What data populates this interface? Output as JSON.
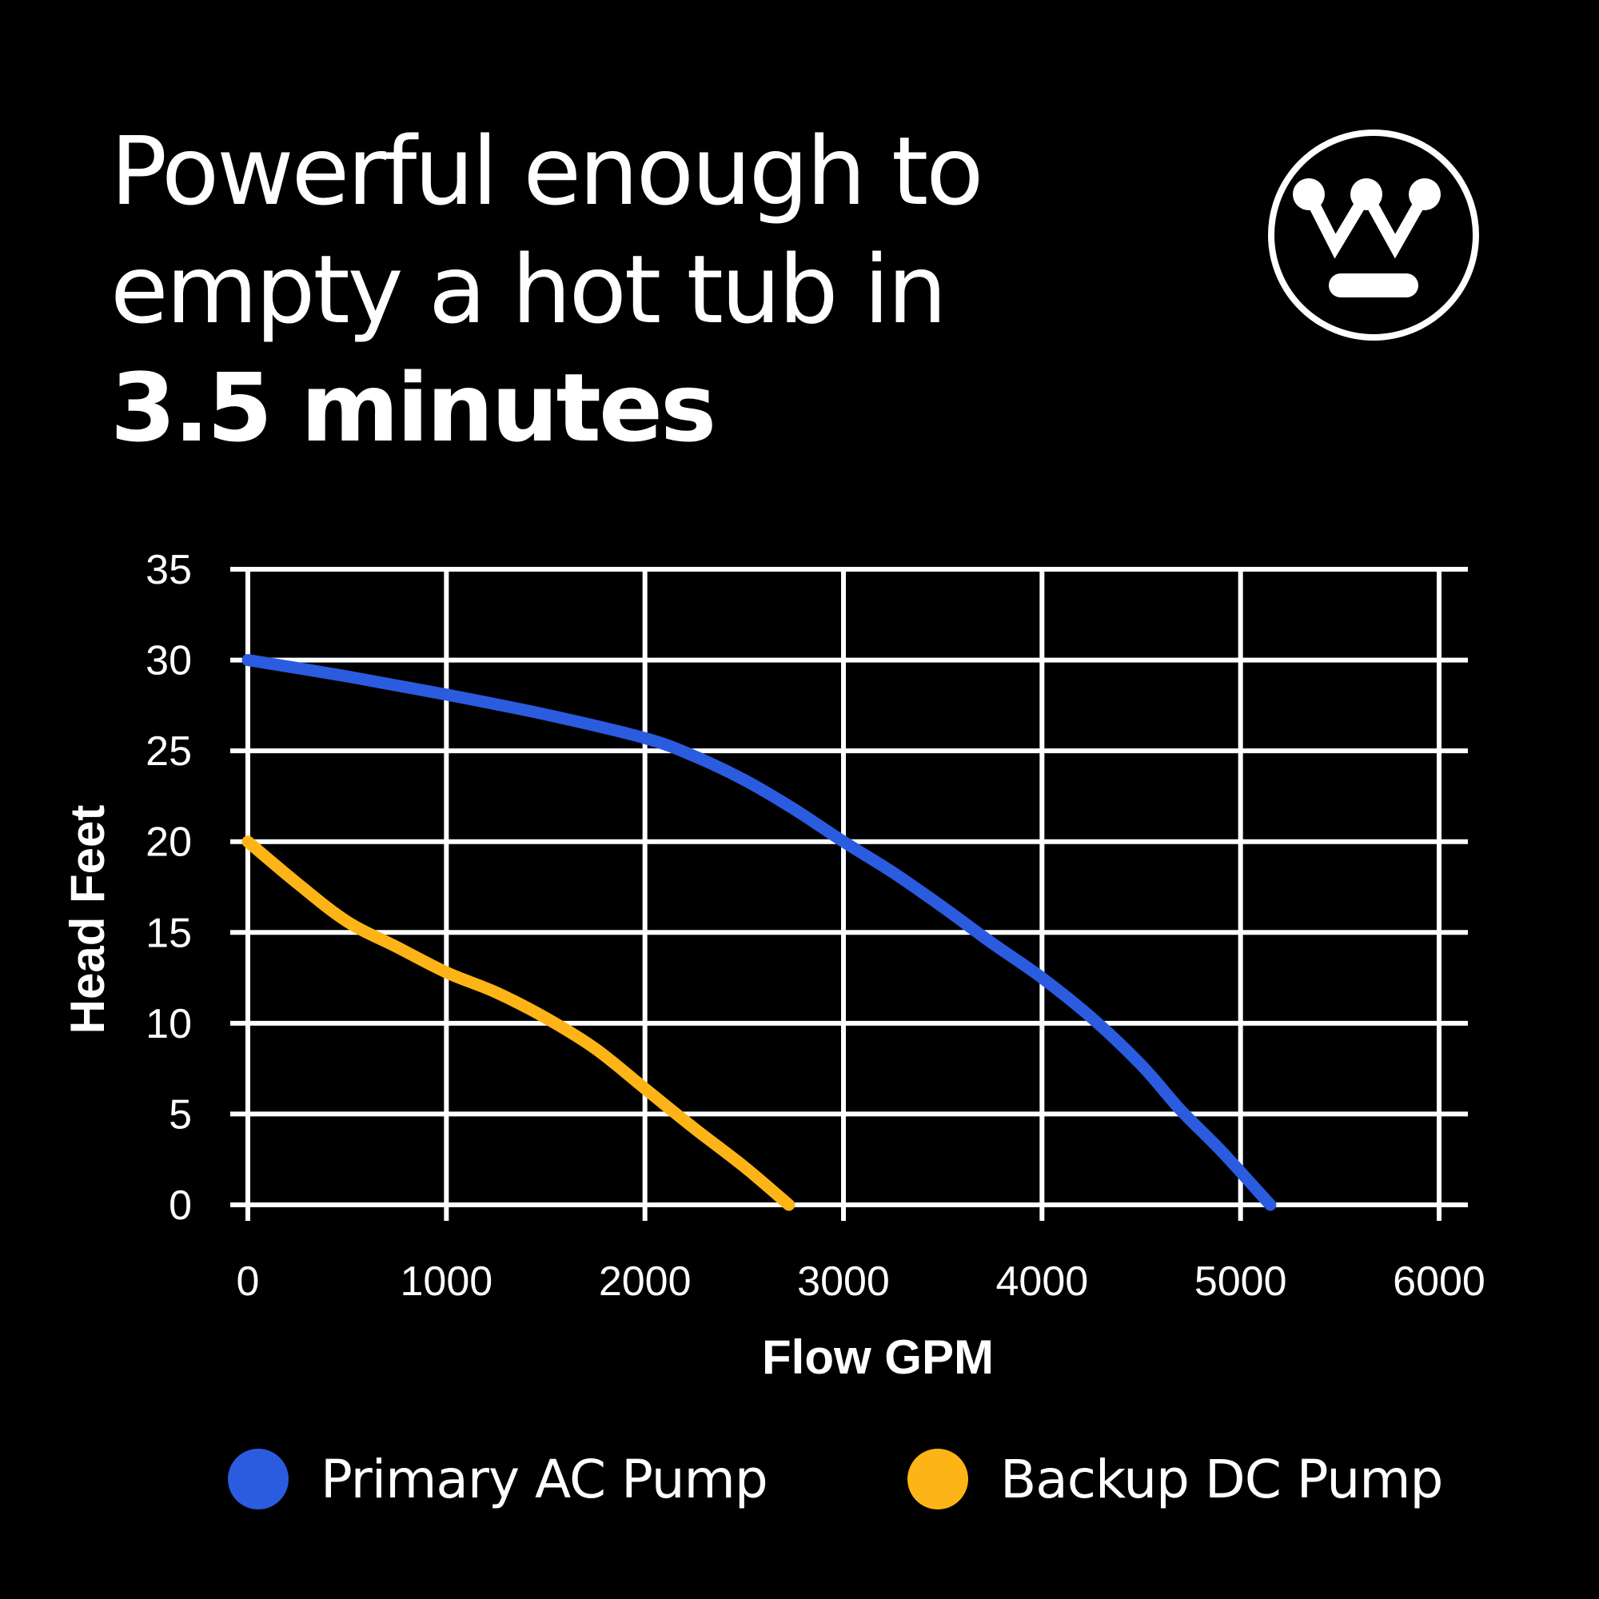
{
  "headline": {
    "line1": "Powerful enough to",
    "line2": "empty a hot tub in",
    "line3": "3.5 minutes"
  },
  "logo": {
    "icon": "westinghouse-logo-icon"
  },
  "colors": {
    "background": "#000000",
    "grid": "#ffffff",
    "primary": "#2b5bdf",
    "backup": "#fdb417"
  },
  "chart_data": {
    "type": "line",
    "title": "",
    "xlabel": "Flow GPM",
    "ylabel": "Head Feet",
    "xlim": [
      0,
      6000
    ],
    "ylim": [
      0,
      35
    ],
    "xticks": [
      0,
      1000,
      2000,
      3000,
      4000,
      5000,
      6000
    ],
    "yticks": [
      0,
      5,
      10,
      15,
      20,
      25,
      30,
      35
    ],
    "grid": true,
    "legend_position": "bottom",
    "series": [
      {
        "name": "Primary AC Pump",
        "color": "#2b5bdf",
        "x": [
          0,
          500,
          1000,
          1500,
          2000,
          2250,
          2500,
          2750,
          3000,
          3250,
          3500,
          3750,
          4000,
          4250,
          4500,
          4700,
          4900,
          5150
        ],
        "y": [
          30,
          29.1,
          28.1,
          27,
          25.7,
          24.7,
          23.4,
          21.8,
          20,
          18.3,
          16.4,
          14.4,
          12.5,
          10.3,
          7.7,
          5.2,
          3,
          0
        ]
      },
      {
        "name": "Backup DC Pump",
        "color": "#fdb417",
        "x": [
          0,
          250,
          500,
          750,
          1000,
          1250,
          1500,
          1750,
          2000,
          2250,
          2500,
          2725
        ],
        "y": [
          20,
          17.7,
          15.6,
          14.2,
          12.8,
          11.7,
          10.3,
          8.6,
          6.4,
          4.2,
          2.1,
          0
        ]
      }
    ]
  }
}
